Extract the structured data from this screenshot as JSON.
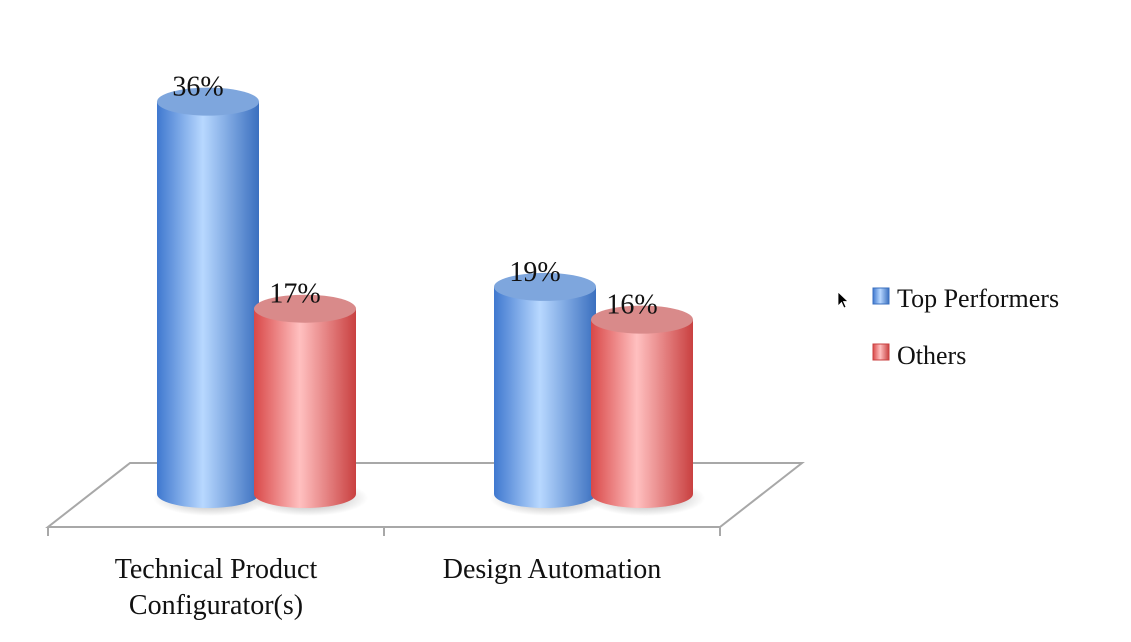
{
  "chart_data": {
    "type": "bar",
    "style": "3d-cylinder",
    "categories": [
      "Technical Product Configurator(s)",
      "Design Automation"
    ],
    "category_lines": [
      [
        "Technical Product",
        "Configurator(s)"
      ],
      [
        "Design Automation"
      ]
    ],
    "series": [
      {
        "name": "Top Performers",
        "values": [
          36,
          19
        ],
        "color": "#4f86d6"
      },
      {
        "name": "Others",
        "values": [
          17,
          16
        ],
        "color": "#d84b4b"
      }
    ],
    "value_suffix": "%",
    "ylim": [
      0,
      40
    ],
    "grid": false,
    "legend_position": "right"
  }
}
